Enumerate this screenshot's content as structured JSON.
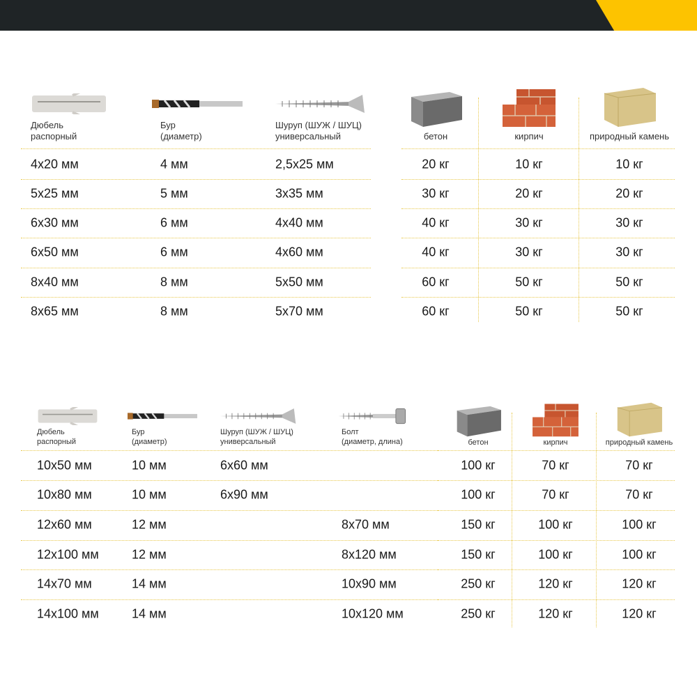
{
  "colors": {
    "header_bar": "#1f2426",
    "accent": "#fdc300",
    "divider": "#e8c84a"
  },
  "table1": {
    "fastener_headers": [
      {
        "line1": "Дюбель",
        "line2": "распорный",
        "icon": "dowel-icon"
      },
      {
        "line1": "Бур",
        "line2": "(диаметр)",
        "icon": "drill-bit-icon"
      },
      {
        "line1": "Шуруп (ШУЖ / ШУЦ)",
        "line2": "универсальный",
        "icon": "screw-icon"
      }
    ],
    "material_headers": [
      {
        "label": "бетон",
        "icon": "concrete-block-icon"
      },
      {
        "label": "кирпич",
        "icon": "brick-icon"
      },
      {
        "label": "природный камень",
        "icon": "stone-icon"
      }
    ],
    "rows": [
      [
        "4x20 мм",
        "4 мм",
        "2,5x25 мм",
        "20 кг",
        "10 кг",
        "10 кг"
      ],
      [
        "5x25 мм",
        "5 мм",
        "3x35 мм",
        "30 кг",
        "20 кг",
        "20 кг"
      ],
      [
        "6x30 мм",
        "6 мм",
        "4x40 мм",
        "40 кг",
        "30 кг",
        "30 кг"
      ],
      [
        "6x50 мм",
        "6 мм",
        "4x60 мм",
        "40 кг",
        "30 кг",
        "30 кг"
      ],
      [
        "8x40 мм",
        "8 мм",
        "5x50 мм",
        "60 кг",
        "50 кг",
        "50 кг"
      ],
      [
        "8x65 мм",
        "8 мм",
        "5x70 мм",
        "60 кг",
        "50 кг",
        "50 кг"
      ]
    ]
  },
  "table2": {
    "fastener_headers": [
      {
        "line1": "Дюбель",
        "line2": "распорный",
        "icon": "dowel-icon"
      },
      {
        "line1": "Бур",
        "line2": "(диаметр)",
        "icon": "drill-bit-icon"
      },
      {
        "line1": "Шуруп (ШУЖ / ШУЦ)",
        "line2": "универсальный",
        "icon": "screw-icon"
      },
      {
        "line1": "Болт",
        "line2": "(диаметр, длина)",
        "icon": "bolt-icon"
      }
    ],
    "material_headers": [
      {
        "label": "бетон",
        "icon": "concrete-block-icon"
      },
      {
        "label": "кирпич",
        "icon": "brick-icon"
      },
      {
        "label": "природный камень",
        "icon": "stone-icon"
      }
    ],
    "rows": [
      [
        "10x50 мм",
        "10 мм",
        "6x60 мм",
        "",
        "100 кг",
        "70 кг",
        "70 кг"
      ],
      [
        "10x80 мм",
        "10 мм",
        "6x90 мм",
        "",
        "100 кг",
        "70 кг",
        "70 кг"
      ],
      [
        "12x60 мм",
        "12 мм",
        "",
        "8x70 мм",
        "150 кг",
        "100 кг",
        "100 кг"
      ],
      [
        "12x100 мм",
        "12 мм",
        "",
        "8x120 мм",
        "150 кг",
        "100 кг",
        "100 кг"
      ],
      [
        "14x70 мм",
        "14 мм",
        "",
        "10x90 мм",
        "250 кг",
        "120 кг",
        "120 кг"
      ],
      [
        "14x100 мм",
        "14 мм",
        "",
        "10x120 мм",
        "250 кг",
        "120 кг",
        "120 кг"
      ]
    ]
  }
}
